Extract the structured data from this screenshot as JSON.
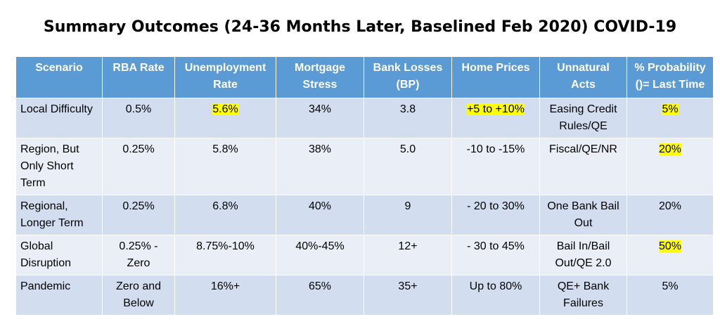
{
  "title": "Summary Outcomes (24-36 Months Later, Baselined Feb 2020) COVID-19",
  "table": {
    "header": [
      "Scenario",
      "RBA Rate",
      "Unemployment Rate",
      "Mortgage Stress",
      "Bank Losses (BP)",
      "Home Prices",
      "Unnatural Acts",
      "% Probability ()= Last Time"
    ],
    "rows": [
      [
        "Local Difficulty",
        "0.5%",
        "5.6%",
        "34%",
        "3.8",
        "+5 to +10%",
        "Easing Credit Rules/QE",
        "5%"
      ],
      [
        "Region, But Only Short Term",
        "0.25%",
        "5.8%",
        "38%",
        "5.0",
        "-10 to -15%",
        "Fiscal/QE/NR",
        "20%"
      ],
      [
        "Regional, Longer Term",
        "0.25%",
        "6.8%",
        "40%",
        "9",
        "- 20 to 30%",
        "One Bank Bail Out",
        "20%"
      ],
      [
        "Global Disruption",
        "0.25% - Zero",
        "8.75%-10%",
        "40%-45%",
        "12+",
        "- 30 to 45%",
        "Bail In/Bail Out/QE 2.0",
        "50%"
      ],
      [
        "Pandemic",
        "Zero and Below",
        "16%+",
        "65%",
        "35+",
        "Up to 80%",
        "QE+ Bank Failures",
        "5%"
      ]
    ]
  }
}
